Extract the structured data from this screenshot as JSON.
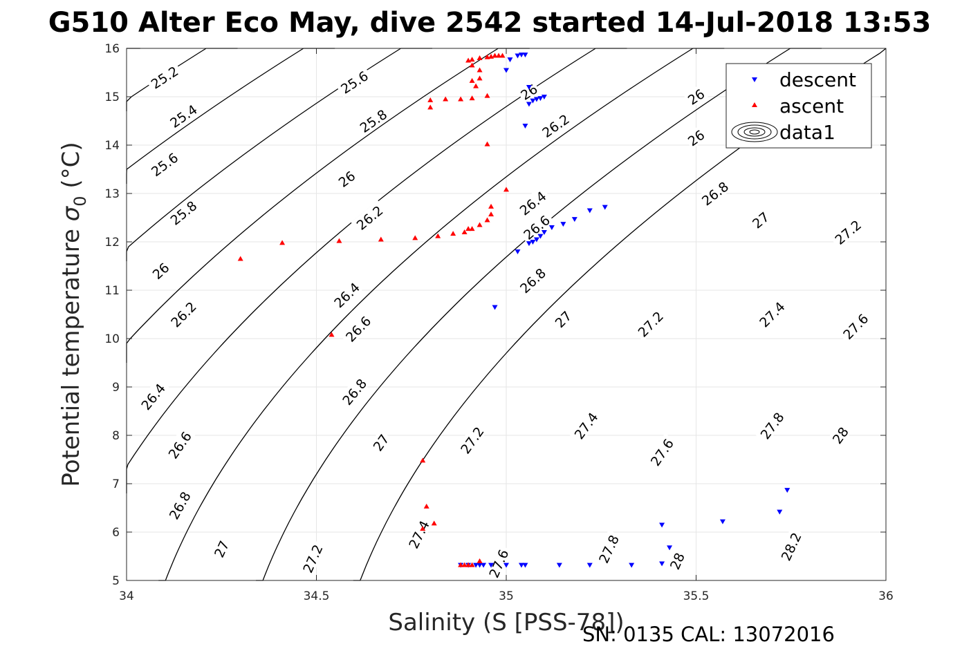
{
  "figure": {
    "title": "G510 Alter Eco May, dive 2542 started 14-Jul-2018 13:53",
    "footer": "SN: 0135  CAL: 13072016"
  },
  "colors": {
    "descent": "#0000ff",
    "ascent": "#ff0000",
    "contour": "#000000",
    "grid": "#e6e6e6",
    "axis": "#262626"
  },
  "chart_data": {
    "type": "scatter",
    "xlabel": "Salinity (S [PSS-78])",
    "ylabel_main": "Potential temperature ",
    "ylabel_sigma": "σ",
    "ylabel_sub": "0",
    "ylabel_unit": " (°C)",
    "xlim": [
      34,
      36
    ],
    "ylim": [
      5,
      16
    ],
    "x_ticks": [
      "34",
      "34.5",
      "35",
      "35.5",
      "36"
    ],
    "x_tick_values": [
      34,
      34.5,
      35,
      35.5,
      36
    ],
    "y_ticks": [
      "5",
      "6",
      "7",
      "8",
      "9",
      "10",
      "11",
      "12",
      "13",
      "14",
      "15",
      "16"
    ],
    "y_tick_values": [
      5,
      6,
      7,
      8,
      9,
      10,
      11,
      12,
      13,
      14,
      15,
      16
    ],
    "grid": true,
    "legend_position": "top-right",
    "legend": [
      "descent",
      "ascent",
      "data1"
    ],
    "series": [
      {
        "name": "descent",
        "marker": "triangle-down",
        "points": [
          [
            35.04,
            15.87
          ],
          [
            35.05,
            15.87
          ],
          [
            35.03,
            15.85
          ],
          [
            35.01,
            15.77
          ],
          [
            35.0,
            15.55
          ],
          [
            35.06,
            15.2
          ],
          [
            35.1,
            15.0
          ],
          [
            35.09,
            14.97
          ],
          [
            35.08,
            14.95
          ],
          [
            35.07,
            14.92
          ],
          [
            35.06,
            14.85
          ],
          [
            35.05,
            14.4
          ],
          [
            35.26,
            12.72
          ],
          [
            35.22,
            12.65
          ],
          [
            35.18,
            12.47
          ],
          [
            35.15,
            12.37
          ],
          [
            35.12,
            12.3
          ],
          [
            35.1,
            12.2
          ],
          [
            35.09,
            12.12
          ],
          [
            35.08,
            12.05
          ],
          [
            35.07,
            12.0
          ],
          [
            35.06,
            11.97
          ],
          [
            35.03,
            11.8
          ],
          [
            34.97,
            10.65
          ],
          [
            35.74,
            6.87
          ],
          [
            35.72,
            6.42
          ],
          [
            35.57,
            6.22
          ],
          [
            35.41,
            6.15
          ],
          [
            35.43,
            5.68
          ],
          [
            35.41,
            5.35
          ],
          [
            35.33,
            5.32
          ],
          [
            35.22,
            5.32
          ],
          [
            35.14,
            5.32
          ],
          [
            35.05,
            5.32
          ],
          [
            35.04,
            5.32
          ],
          [
            35.0,
            5.32
          ],
          [
            34.96,
            5.32
          ],
          [
            34.94,
            5.32
          ],
          [
            34.93,
            5.32
          ],
          [
            34.92,
            5.32
          ],
          [
            34.9,
            5.32
          ],
          [
            34.88,
            5.32
          ]
        ]
      },
      {
        "name": "ascent",
        "marker": "triangle-up",
        "points": [
          [
            34.99,
            15.85
          ],
          [
            34.97,
            15.85
          ],
          [
            34.98,
            15.85
          ],
          [
            34.96,
            15.83
          ],
          [
            34.95,
            15.82
          ],
          [
            34.93,
            15.8
          ],
          [
            34.91,
            15.77
          ],
          [
            34.9,
            15.75
          ],
          [
            34.91,
            15.65
          ],
          [
            34.93,
            15.55
          ],
          [
            34.93,
            15.38
          ],
          [
            34.91,
            15.33
          ],
          [
            34.92,
            15.22
          ],
          [
            34.95,
            15.02
          ],
          [
            34.91,
            14.97
          ],
          [
            34.88,
            14.95
          ],
          [
            34.84,
            14.95
          ],
          [
            34.8,
            14.93
          ],
          [
            34.8,
            14.78
          ],
          [
            34.95,
            14.02
          ],
          [
            35.0,
            13.08
          ],
          [
            34.96,
            12.73
          ],
          [
            34.96,
            12.57
          ],
          [
            34.95,
            12.45
          ],
          [
            34.93,
            12.35
          ],
          [
            34.91,
            12.27
          ],
          [
            34.9,
            12.27
          ],
          [
            34.89,
            12.2
          ],
          [
            34.86,
            12.17
          ],
          [
            34.82,
            12.12
          ],
          [
            34.76,
            12.08
          ],
          [
            34.67,
            12.05
          ],
          [
            34.56,
            12.02
          ],
          [
            34.41,
            11.98
          ],
          [
            34.3,
            11.65
          ],
          [
            34.54,
            10.08
          ],
          [
            34.78,
            7.48
          ],
          [
            34.79,
            6.53
          ],
          [
            34.81,
            6.18
          ],
          [
            34.78,
            6.07
          ],
          [
            34.93,
            5.4
          ],
          [
            34.91,
            5.32
          ],
          [
            34.9,
            5.32
          ],
          [
            34.89,
            5.32
          ],
          [
            34.88,
            5.32
          ]
        ]
      }
    ],
    "contours": {
      "levels": [
        25.2,
        25.4,
        25.6,
        25.8,
        26,
        26.2,
        26.4,
        26.6,
        26.8,
        27,
        27.2,
        27.4,
        27.6,
        27.8,
        28,
        28.2
      ],
      "labels": [
        {
          "text": "25.2",
          "s": 34.1,
          "t": 15.4
        },
        {
          "text": "25.4",
          "s": 34.15,
          "t": 14.6
        },
        {
          "text": "25.6",
          "s": 34.1,
          "t": 13.6
        },
        {
          "text": "25.8",
          "s": 34.15,
          "t": 12.6
        },
        {
          "text": "26",
          "s": 34.09,
          "t": 11.4
        },
        {
          "text": "26.2",
          "s": 34.15,
          "t": 10.5
        },
        {
          "text": "26.4",
          "s": 34.07,
          "t": 8.8
        },
        {
          "text": "26.6",
          "s": 34.14,
          "t": 7.8
        },
        {
          "text": "26.8",
          "s": 34.14,
          "t": 6.55
        },
        {
          "text": "27",
          "s": 34.25,
          "t": 5.65
        },
        {
          "text": "25.6",
          "s": 34.6,
          "t": 15.3
        },
        {
          "text": "25.8",
          "s": 34.65,
          "t": 14.5
        },
        {
          "text": "26",
          "s": 34.58,
          "t": 13.3
        },
        {
          "text": "26.2",
          "s": 34.64,
          "t": 12.5
        },
        {
          "text": "26.4",
          "s": 34.58,
          "t": 10.9
        },
        {
          "text": "26.6",
          "s": 34.61,
          "t": 10.2
        },
        {
          "text": "26.8",
          "s": 34.6,
          "t": 8.9
        },
        {
          "text": "27",
          "s": 34.67,
          "t": 7.85
        },
        {
          "text": "27.2",
          "s": 34.49,
          "t": 5.45
        },
        {
          "text": "26",
          "s": 35.06,
          "t": 15.1
        },
        {
          "text": "26.2",
          "s": 35.13,
          "t": 14.4
        },
        {
          "text": "26.4",
          "s": 35.07,
          "t": 12.8
        },
        {
          "text": "26.6",
          "s": 35.08,
          "t": 12.3
        },
        {
          "text": "26.8",
          "s": 35.07,
          "t": 11.2
        },
        {
          "text": "27",
          "s": 35.15,
          "t": 10.4
        },
        {
          "text": "27.2",
          "s": 34.91,
          "t": 7.9
        },
        {
          "text": "27.4",
          "s": 34.77,
          "t": 5.95
        },
        {
          "text": "27.6",
          "s": 34.98,
          "t": 5.35
        },
        {
          "text": "27.4",
          "s": 35.21,
          "t": 8.2
        },
        {
          "text": "27.6",
          "s": 35.41,
          "t": 7.65
        },
        {
          "text": "27.8",
          "s": 35.27,
          "t": 5.65
        },
        {
          "text": "28",
          "s": 35.45,
          "t": 5.4
        },
        {
          "text": "27.2",
          "s": 35.38,
          "t": 10.3
        },
        {
          "text": "27.4",
          "s": 35.7,
          "t": 10.5
        },
        {
          "text": "27.6",
          "s": 35.92,
          "t": 10.25
        },
        {
          "text": "27.8",
          "s": 35.7,
          "t": 8.2
        },
        {
          "text": "28",
          "s": 35.88,
          "t": 8.0
        },
        {
          "text": "28.2",
          "s": 35.75,
          "t": 5.7
        },
        {
          "text": "26.8",
          "s": 35.55,
          "t": 13.0
        },
        {
          "text": "27",
          "s": 35.67,
          "t": 12.45
        },
        {
          "text": "27.2",
          "s": 35.9,
          "t": 12.2
        },
        {
          "text": "26",
          "s": 35.5,
          "t": 15.0
        },
        {
          "text": "26",
          "s": 35.5,
          "t": 14.15
        }
      ]
    }
  }
}
